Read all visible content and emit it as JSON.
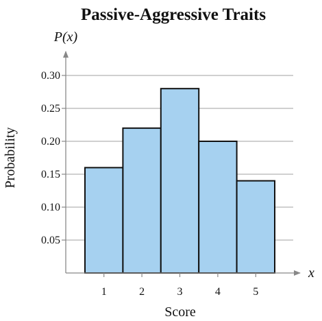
{
  "chart_data": {
    "type": "bar",
    "title": "Passive-Aggressive Traits",
    "xlabel": "Score",
    "ylabel": "Probability",
    "y_axis_symbol": "P(x)",
    "x_axis_symbol": "x",
    "categories": [
      "1",
      "2",
      "3",
      "4",
      "5"
    ],
    "values": [
      0.16,
      0.22,
      0.28,
      0.2,
      0.14
    ],
    "ylim": [
      0,
      0.3
    ],
    "yticks": [
      "0.05",
      "0.10",
      "0.15",
      "0.20",
      "0.25",
      "0.30"
    ],
    "grid": true,
    "bar_color": "#a6d1f0",
    "bar_edge_color": "#111111"
  }
}
